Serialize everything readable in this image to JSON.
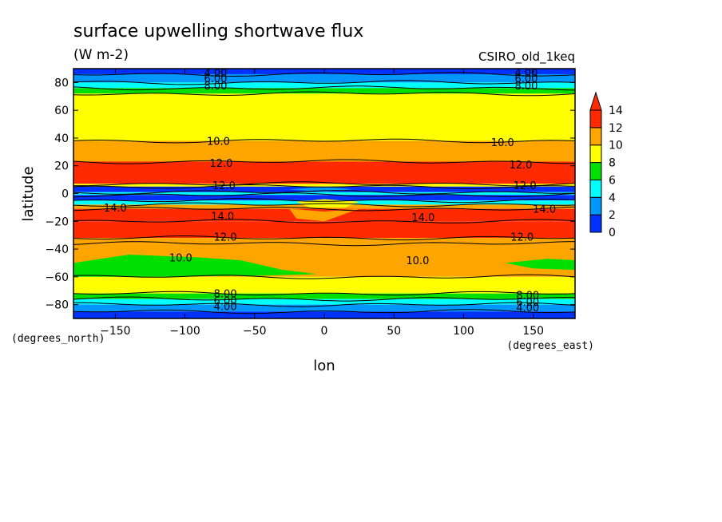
{
  "header": {
    "title": "surface upwelling shortwave flux",
    "units": "(W m-2)",
    "model": "CSIRO_old_1keq"
  },
  "axes": {
    "xlabel": "lon",
    "ylabel": "latitude",
    "x_unit": "(degrees_east)",
    "y_unit": "(degrees_north)"
  },
  "chart_data": {
    "type": "heatmap",
    "title": "surface upwelling shortwave flux",
    "subtitle": "(W m-2)",
    "xlabel": "lon",
    "ylabel": "latitude",
    "xlim": [
      -180,
      180
    ],
    "ylim": [
      -90,
      90
    ],
    "xticks": [
      -150,
      -100,
      -50,
      0,
      50,
      100,
      150
    ],
    "yticks": [
      -80,
      -60,
      -40,
      -20,
      0,
      20,
      40,
      60,
      80
    ],
    "colorbar": {
      "levels": [
        0,
        2,
        4,
        6,
        8,
        10,
        12,
        14
      ],
      "colors": [
        "#0032ff",
        "#0096ff",
        "#00ffff",
        "#00e000",
        "#ffff00",
        "#ffa500",
        "#ff2a00"
      ],
      "extend": "max"
    },
    "bands": [
      {
        "lat_from": 86,
        "lat_to": 90,
        "value": 1.5
      },
      {
        "lat_from": 80,
        "lat_to": 86,
        "value": 3.5
      },
      {
        "lat_from": 76,
        "lat_to": 80,
        "value": 5.5
      },
      {
        "lat_from": 72,
        "lat_to": 76,
        "value": 7.0
      },
      {
        "lat_from": 38,
        "lat_to": 72,
        "value": 9.0
      },
      {
        "lat_from": 23,
        "lat_to": 38,
        "value": 11.0
      },
      {
        "lat_from": 7,
        "lat_to": 23,
        "value": 12.5
      },
      {
        "lat_from": 5,
        "lat_to": 7,
        "value": 9.0
      },
      {
        "lat_from": 1,
        "lat_to": 5,
        "value": 1.0
      },
      {
        "lat_from": -1,
        "lat_to": 1,
        "value": 5.0
      },
      {
        "lat_from": -5,
        "lat_to": -1,
        "value": 1.0
      },
      {
        "lat_from": -8,
        "lat_to": -5,
        "value": 5.0
      },
      {
        "lat_from": -11,
        "lat_to": -8,
        "value": 10.0
      },
      {
        "lat_from": -20,
        "lat_to": -11,
        "value": 14.5
      },
      {
        "lat_from": -32,
        "lat_to": -20,
        "value": 12.5
      },
      {
        "lat_from": -36,
        "lat_to": -32,
        "value": 11.0
      },
      {
        "lat_from": -60,
        "lat_to": -36,
        "value": 11.0
      },
      {
        "lat_from": -72,
        "lat_to": -60,
        "value": 9.0
      },
      {
        "lat_from": -76,
        "lat_to": -72,
        "value": 7.0
      },
      {
        "lat_from": -80,
        "lat_to": -76,
        "value": 5.5
      },
      {
        "lat_from": -85,
        "lat_to": -80,
        "value": 3.5
      },
      {
        "lat_from": -90,
        "lat_to": -85,
        "value": 1.5
      }
    ],
    "contour_labels": [
      {
        "text": "4.00",
        "lon": -78,
        "lat": 87
      },
      {
        "text": "6.00",
        "lon": -78,
        "lat": 83
      },
      {
        "text": "8.00",
        "lon": -78,
        "lat": 78
      },
      {
        "text": "4.00",
        "lon": 145,
        "lat": 87
      },
      {
        "text": "6.00",
        "lon": 145,
        "lat": 83
      },
      {
        "text": "8.00",
        "lon": 145,
        "lat": 78
      },
      {
        "text": "10.0",
        "lon": -76,
        "lat": 38
      },
      {
        "text": "10.0",
        "lon": 128,
        "lat": 37
      },
      {
        "text": "12.0",
        "lon": -74,
        "lat": 22
      },
      {
        "text": "12.0",
        "lon": 141,
        "lat": 21
      },
      {
        "text": "12.0",
        "lon": -72,
        "lat": 6
      },
      {
        "text": "12.0",
        "lon": 144,
        "lat": 6
      },
      {
        "text": "14.0",
        "lon": -150,
        "lat": -10
      },
      {
        "text": "14.0",
        "lon": -73,
        "lat": -16
      },
      {
        "text": "14.0",
        "lon": 71,
        "lat": -17
      },
      {
        "text": "14.0",
        "lon": 158,
        "lat": -11
      },
      {
        "text": "12.0",
        "lon": -71,
        "lat": -31
      },
      {
        "text": "12.0",
        "lon": 142,
        "lat": -31
      },
      {
        "text": "10.0",
        "lon": -103,
        "lat": -46
      },
      {
        "text": "10.0",
        "lon": 67,
        "lat": -48
      },
      {
        "text": "8.00",
        "lon": -71,
        "lat": -72
      },
      {
        "text": "6.00",
        "lon": -71,
        "lat": -77
      },
      {
        "text": "4.00",
        "lon": -71,
        "lat": -81
      },
      {
        "text": "8.00",
        "lon": 146,
        "lat": -73
      },
      {
        "text": "6.00",
        "lon": 146,
        "lat": -78
      },
      {
        "text": "4.00",
        "lon": 146,
        "lat": -82
      }
    ]
  }
}
